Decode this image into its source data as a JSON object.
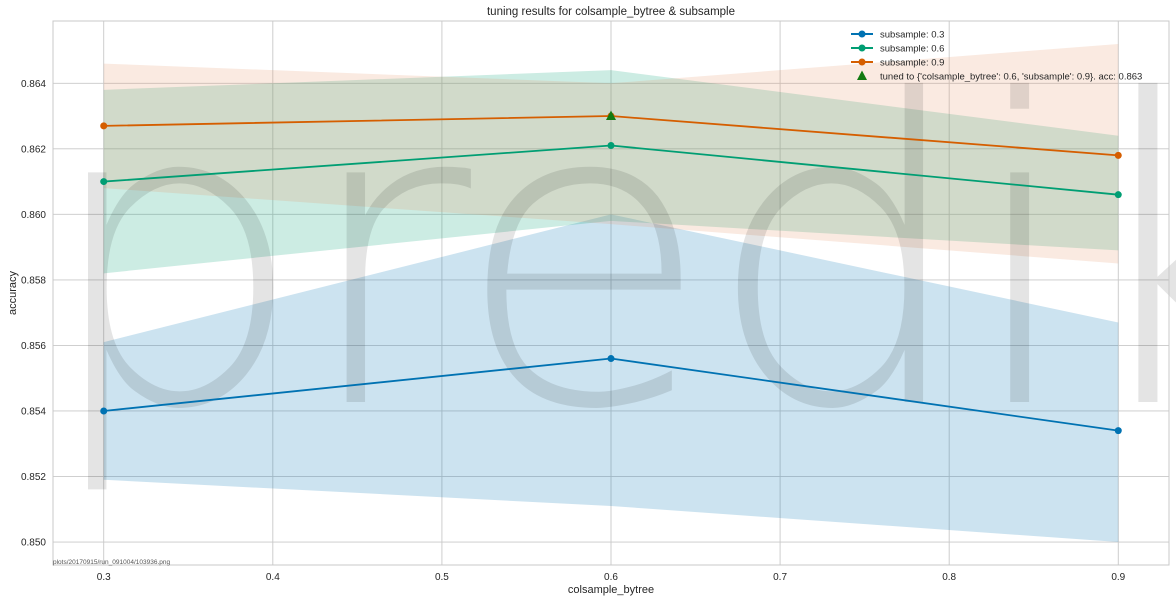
{
  "chart_data": {
    "type": "line",
    "title": "tuning results for colsample_bytree & subsample",
    "xlabel": "colsample_bytree",
    "ylabel": "accuracy",
    "xlim": [
      0.27,
      0.93
    ],
    "ylim": [
      0.8493,
      0.8659
    ],
    "grid": true,
    "legend_position": "top-right",
    "x_ticks": [
      0.3,
      0.4,
      0.5,
      0.6,
      0.7,
      0.8,
      0.9
    ],
    "x_tick_labels": [
      "0.3",
      "0.4",
      "0.5",
      "0.6",
      "0.7",
      "0.8",
      "0.9"
    ],
    "y_ticks": [
      0.85,
      0.852,
      0.854,
      0.856,
      0.858,
      0.86,
      0.862,
      0.864
    ],
    "y_tick_labels": [
      "0.850",
      "0.852",
      "0.854",
      "0.856",
      "0.858",
      "0.860",
      "0.862",
      "0.864"
    ],
    "x": [
      0.3,
      0.6,
      0.9
    ],
    "series": [
      {
        "name": "subsample: 0.3",
        "color": "#0072b2",
        "band_color": "#0072b2",
        "values": [
          0.854,
          0.8556,
          0.8534
        ],
        "lower": [
          0.8519,
          0.8511,
          0.85
        ],
        "upper": [
          0.8561,
          0.86,
          0.8567
        ]
      },
      {
        "name": "subsample: 0.6",
        "color": "#009e73",
        "band_color": "#009e73",
        "values": [
          0.861,
          0.8621,
          0.8606
        ],
        "lower": [
          0.8582,
          0.8598,
          0.8589
        ],
        "upper": [
          0.8638,
          0.8644,
          0.8624
        ]
      },
      {
        "name": "subsample: 0.9",
        "color": "#d55e00",
        "band_color": "#e8956a",
        "values": [
          0.8627,
          0.863,
          0.8618
        ],
        "lower": [
          0.8608,
          0.8597,
          0.8585
        ],
        "upper": [
          0.8646,
          0.864,
          0.8652
        ]
      }
    ],
    "tuned_marker": {
      "label": "tuned to {'colsample_bytree': 0.6, 'subsample': 0.9}.  acc: 0.863",
      "x": 0.6,
      "y": 0.863,
      "color": "#117a11"
    },
    "watermark": "predikt.io",
    "footer": "plots/20170915/run_091004/103936.png"
  }
}
